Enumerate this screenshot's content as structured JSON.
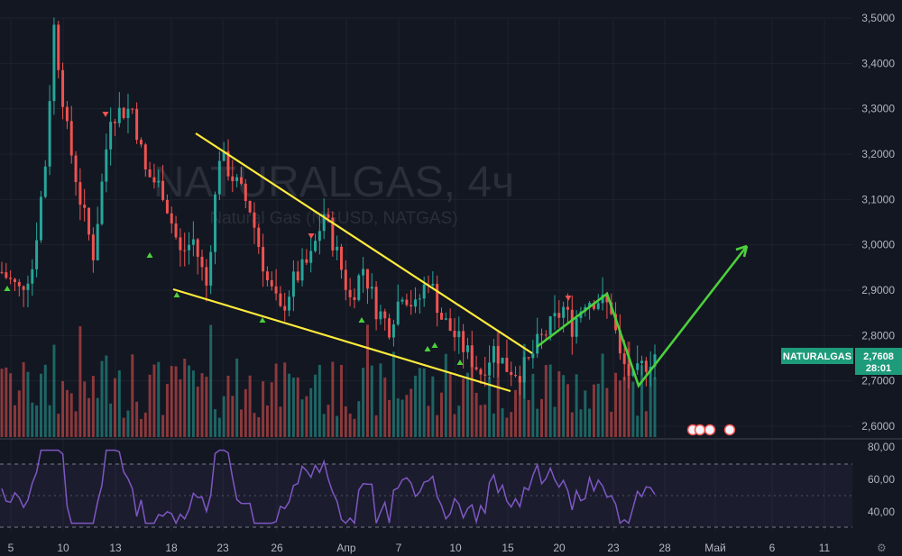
{
  "chart_data": {
    "type": "candlestick",
    "symbol_label": "NATURALGAS",
    "watermark": {
      "title": "NATURALGAS, 4ч",
      "subtitle": "Natural Gas (NGUSD, NATGAS)"
    },
    "last_price": "2,7608",
    "countdown": "28:01",
    "price_axis": {
      "labels": [
        "3,5000",
        "3,4000",
        "3,3000",
        "3,2000",
        "3,1000",
        "3,0000",
        "2,9000",
        "2,8000",
        "2,7000",
        "2,6000"
      ],
      "values": [
        3.5,
        3.4,
        3.3,
        3.2,
        3.1,
        3.0,
        2.9,
        2.8,
        2.7,
        2.6
      ],
      "ylim": [
        2.57,
        3.52
      ]
    },
    "time_axis": {
      "labels": [
        "5",
        "10",
        "13",
        "18",
        "23",
        "26",
        "Апр",
        "7",
        "10",
        "15",
        "20",
        "23",
        "28",
        "Май",
        "6",
        "11"
      ]
    },
    "price_path": {
      "start_index": 0,
      "end_index": 119,
      "anchors": [
        [
          0,
          2.94
        ],
        [
          4,
          2.9
        ],
        [
          7,
          2.95
        ],
        [
          10,
          3.18
        ],
        [
          12,
          3.48
        ],
        [
          15,
          3.25
        ],
        [
          18,
          3.1
        ],
        [
          21,
          2.98
        ],
        [
          25,
          3.29
        ],
        [
          30,
          3.3
        ],
        [
          33,
          3.16
        ],
        [
          37,
          3.12
        ],
        [
          41,
          2.98
        ],
        [
          44,
          3.01
        ],
        [
          47,
          2.91
        ],
        [
          50,
          3.2
        ],
        [
          53,
          3.15
        ],
        [
          57,
          3.08
        ],
        [
          61,
          2.92
        ],
        [
          64,
          2.85
        ],
        [
          67,
          2.92
        ],
        [
          71,
          2.97
        ],
        [
          74,
          3.07
        ],
        [
          77,
          2.98
        ],
        [
          80,
          2.88
        ],
        [
          83,
          2.95
        ],
        [
          86,
          2.86
        ],
        [
          89,
          2.82
        ],
        [
          92,
          2.9
        ],
        [
          95,
          2.86
        ],
        [
          98,
          2.93
        ],
        [
          101,
          2.84
        ],
        [
          104,
          2.8
        ],
        [
          107,
          2.76
        ],
        [
          110,
          2.72
        ],
        [
          113,
          2.77
        ],
        [
          116,
          2.73
        ],
        [
          119,
          2.72
        ]
      ]
    },
    "future_path": {
      "start_index": 119,
      "end_index": 150,
      "anchors": [
        [
          119,
          2.72
        ],
        [
          121,
          2.74
        ],
        [
          123,
          2.78
        ],
        [
          126,
          2.82
        ],
        [
          129,
          2.86
        ],
        [
          131,
          2.82
        ],
        [
          134,
          2.88
        ],
        [
          137,
          2.88
        ],
        [
          140,
          2.86
        ],
        [
          142,
          2.75
        ],
        [
          145,
          2.7
        ],
        [
          147,
          2.73
        ],
        [
          150,
          2.76
        ]
      ]
    },
    "drawings": {
      "wedge_upper": [
        [
          217,
          148
        ],
        [
          590,
          392
        ]
      ],
      "wedge_lower": [
        [
          192,
          321
        ],
        [
          566,
          434
        ]
      ],
      "zigzag": [
        [
          595,
          385
        ],
        [
          673,
          326
        ],
        [
          708,
          428
        ],
        [
          828,
          273
        ]
      ],
      "colors": {
        "wedge": "#ffeb3b",
        "zigzag": "#4cd03b"
      }
    },
    "rsi": {
      "labels": [
        "80,00",
        "60,00",
        "40,00"
      ],
      "values": [
        80,
        60,
        40
      ],
      "ylim": [
        28,
        84
      ]
    },
    "colors": {
      "up": "#26a69a",
      "down": "#ef5350",
      "rsi": "#7e57c2",
      "badge": "#1e9b7b"
    }
  }
}
